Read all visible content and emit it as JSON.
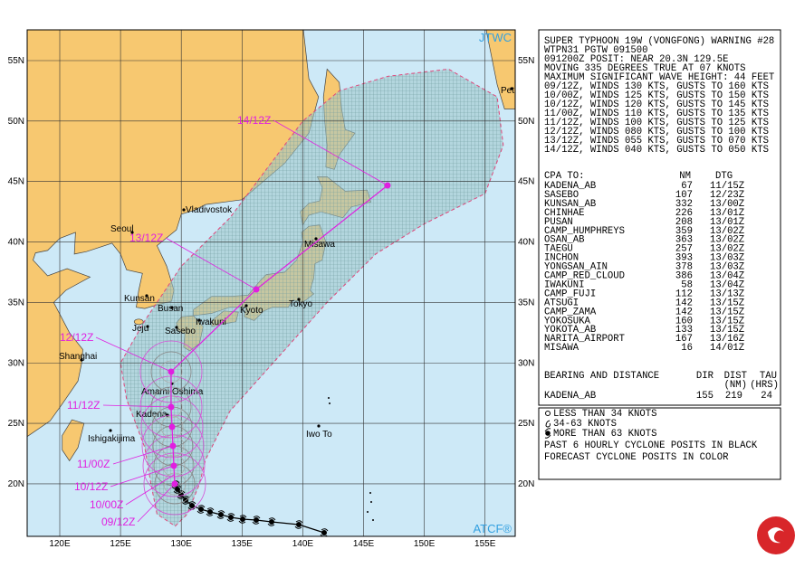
{
  "map": {
    "corner_labels": {
      "top_right": "JTWC",
      "bottom_right": "ATCF®"
    },
    "lat_labels": [
      "55N",
      "50N",
      "45N",
      "40N",
      "35N",
      "30N",
      "25N",
      "20N"
    ],
    "lon_labels": [
      "120E",
      "125E",
      "130E",
      "135E",
      "140E",
      "145E",
      "150E",
      "155E"
    ],
    "places": [
      "Seoul",
      "Vladivostok",
      "Kunsan",
      "Busan",
      "Jeju",
      "Sasebo",
      "Iwakuni",
      "Kyoto",
      "Tokyo",
      "Misawa",
      "Shanghai",
      "Amami Oshima",
      "Kadena",
      "Ishigakijima",
      "Iwo To",
      "Pet"
    ],
    "forecast_labels": [
      "14/12Z",
      "13/12Z",
      "12/12Z",
      "11/12Z",
      "11/00Z",
      "10/12Z",
      "10/00Z",
      "09/12Z"
    ]
  },
  "warning": {
    "lines": [
      "SUPER TYPHOON 19W (VONGFONG) WARNING #28",
      "WTPN31 PGTW 091500",
      "091200Z POSIT: NEAR 20.3N 129.5E",
      "MOVING 335 DEGREES TRUE AT 07 KNOTS",
      "MAXIMUM SIGNIFICANT WAVE HEIGHT: 44 FEET",
      "09/12Z, WINDS 130 KTS, GUSTS TO 160 KTS",
      "10/00Z, WINDS 125 KTS, GUSTS TO 150 KTS",
      "10/12Z, WINDS 120 KTS, GUSTS TO 145 KTS",
      "11/00Z, WINDS 110 KTS, GUSTS TO 135 KTS",
      "11/12Z, WINDS 100 KTS, GUSTS TO 125 KTS",
      "12/12Z, WINDS 080 KTS, GUSTS TO 100 KTS",
      "13/12Z, WINDS 055 KTS, GUSTS TO 070 KTS",
      "14/12Z, WINDS 040 KTS, GUSTS TO 050 KTS"
    ],
    "cpa_title": "CPA TO:",
    "cpa_headers": [
      "NM",
      "DTG"
    ],
    "cpa_rows": [
      {
        "name": "KADENA_AB",
        "nm": 67,
        "dtg": "11/15Z"
      },
      {
        "name": "SASEBO",
        "nm": 107,
        "dtg": "12/23Z"
      },
      {
        "name": "KUNSAN_AB",
        "nm": 332,
        "dtg": "13/00Z"
      },
      {
        "name": "CHINHAE",
        "nm": 226,
        "dtg": "13/01Z"
      },
      {
        "name": "PUSAN",
        "nm": 208,
        "dtg": "13/01Z"
      },
      {
        "name": "CAMP_HUMPHREYS",
        "nm": 359,
        "dtg": "13/02Z"
      },
      {
        "name": "OSAN_AB",
        "nm": 363,
        "dtg": "13/02Z"
      },
      {
        "name": "TAEGU",
        "nm": 257,
        "dtg": "13/02Z"
      },
      {
        "name": "INCHON",
        "nm": 393,
        "dtg": "13/03Z"
      },
      {
        "name": "YONGSAN_AIN",
        "nm": 378,
        "dtg": "13/03Z"
      },
      {
        "name": "CAMP_RED_CLOUD",
        "nm": 386,
        "dtg": "13/04Z"
      },
      {
        "name": "IWAKUNI",
        "nm": 58,
        "dtg": "13/04Z"
      },
      {
        "name": "CAMP_FUJI",
        "nm": 112,
        "dtg": "13/13Z"
      },
      {
        "name": "ATSUGI",
        "nm": 142,
        "dtg": "13/15Z"
      },
      {
        "name": "CAMP_ZAMA",
        "nm": 142,
        "dtg": "13/15Z"
      },
      {
        "name": "YOKOSUKA",
        "nm": 160,
        "dtg": "13/15Z"
      },
      {
        "name": "YOKOTA_AB",
        "nm": 133,
        "dtg": "13/15Z"
      },
      {
        "name": "NARITA_AIRPORT",
        "nm": 167,
        "dtg": "13/16Z"
      },
      {
        "name": "MISAWA",
        "nm": 16,
        "dtg": "14/01Z"
      }
    ],
    "bearing": {
      "title": "BEARING AND DISTANCE",
      "headers": [
        "DIR",
        "DIST",
        "TAU"
      ],
      "subheaders": [
        "(NM)",
        "(HRS)"
      ],
      "station": "KADENA_AB",
      "dir": 155,
      "dist": 219,
      "tau": 24
    }
  },
  "legend": [
    "LESS THAN 34 KNOTS",
    "34-63 KNOTS",
    "MORE THAN 63 KNOTS",
    "PAST 6 HOURLY CYCLONE POSITS IN BLACK",
    "FORECAST CYCLONE POSITS IN COLOR"
  ]
}
